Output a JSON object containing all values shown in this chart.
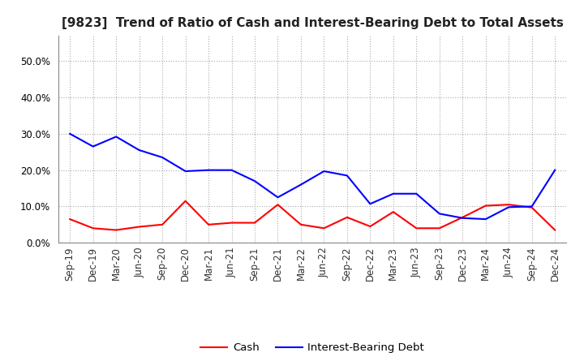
{
  "title": "[9823]  Trend of Ratio of Cash and Interest-Bearing Debt to Total Assets",
  "x_labels": [
    "Sep-19",
    "Dec-19",
    "Mar-20",
    "Jun-20",
    "Sep-20",
    "Dec-20",
    "Mar-21",
    "Jun-21",
    "Sep-21",
    "Dec-21",
    "Mar-22",
    "Jun-22",
    "Sep-22",
    "Dec-22",
    "Mar-23",
    "Jun-23",
    "Sep-23",
    "Dec-23",
    "Mar-24",
    "Jun-24",
    "Sep-24",
    "Dec-24"
  ],
  "cash": [
    0.065,
    0.04,
    0.035,
    0.044,
    0.05,
    0.115,
    0.05,
    0.055,
    0.055,
    0.105,
    0.05,
    0.04,
    0.07,
    0.045,
    0.085,
    0.04,
    0.04,
    0.07,
    0.102,
    0.105,
    0.097,
    0.035
  ],
  "interest_bearing_debt": [
    0.3,
    0.265,
    0.292,
    0.255,
    0.235,
    0.197,
    0.2,
    0.2,
    0.17,
    0.125,
    0.16,
    0.197,
    0.185,
    0.107,
    0.135,
    0.135,
    0.08,
    0.068,
    0.065,
    0.098,
    0.1,
    0.2
  ],
  "cash_color": "#ff0000",
  "debt_color": "#0000ff",
  "ylim": [
    0.0,
    0.57
  ],
  "yticks": [
    0.0,
    0.1,
    0.2,
    0.3,
    0.4,
    0.5
  ],
  "background_color": "#ffffff",
  "grid_color": "#aaaaaa",
  "legend_cash": "Cash",
  "legend_debt": "Interest-Bearing Debt",
  "title_fontsize": 11,
  "tick_fontsize": 8.5,
  "line_width": 1.5
}
